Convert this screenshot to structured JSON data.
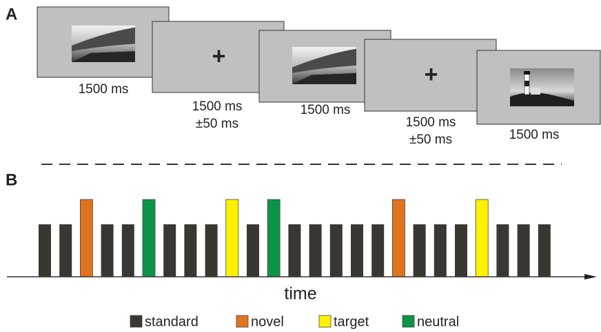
{
  "panel_a": {
    "label": "A",
    "screens": [
      {
        "lines": [
          "1500 ms"
        ]
      },
      {
        "cross": "+",
        "lines": [
          "1500 ms",
          "±50 ms"
        ]
      },
      {
        "lines": [
          "1500 ms"
        ]
      },
      {
        "cross": "+",
        "lines": [
          "1500 ms",
          "±50 ms"
        ]
      },
      {
        "lines": [
          "1500 ms"
        ]
      }
    ]
  },
  "panel_b": {
    "label": "B",
    "sequence": [
      0,
      0,
      1,
      0,
      0,
      3,
      0,
      0,
      0,
      2,
      0,
      3,
      0,
      0,
      0,
      0,
      0,
      1,
      0,
      0,
      0,
      2,
      0,
      0,
      0
    ],
    "axis_label": "time",
    "legend": [
      {
        "label": "standard",
        "color": "#3a3733"
      },
      {
        "label": "novel",
        "color": "#e2731d"
      },
      {
        "label": "target",
        "color": "#fff200"
      },
      {
        "label": "neutral",
        "color": "#0b9447"
      }
    ]
  }
}
